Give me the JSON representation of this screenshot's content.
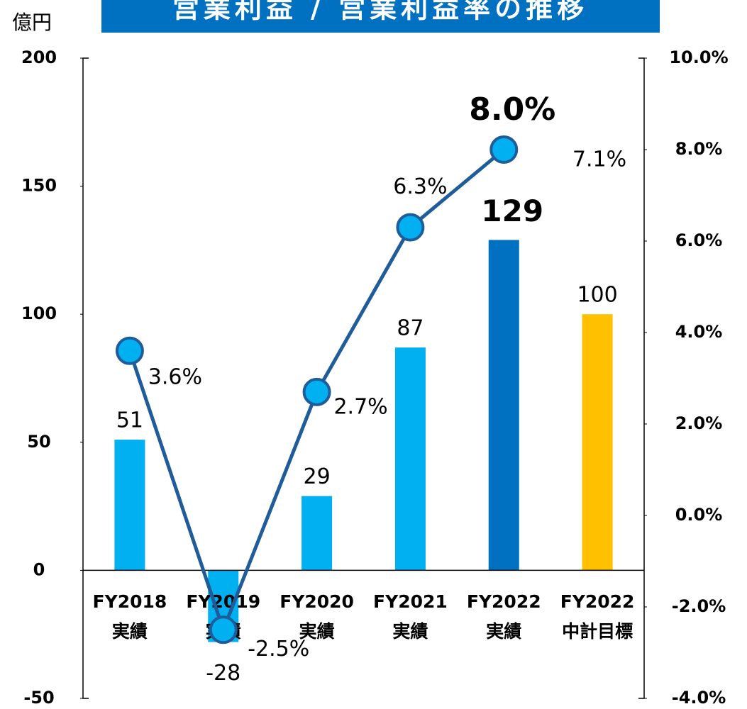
{
  "chart_data": {
    "type": "bar+line",
    "title": "営業利益 / 営業利益率の推移",
    "y_unit": "億円",
    "categories": [
      [
        "FY2018",
        "実績"
      ],
      [
        "FY2019",
        "実績"
      ],
      [
        "FY2020",
        "実績"
      ],
      [
        "FY2021",
        "実績"
      ],
      [
        "FY2022",
        "実績"
      ],
      [
        "FY2022",
        "中計目標"
      ]
    ],
    "series": [
      {
        "name": "営業利益",
        "type": "bar",
        "colors": [
          "#00b0f0",
          "#00b0f0",
          "#00b0f0",
          "#00b0f0",
          "#0070c0",
          "#ffc000"
        ],
        "values": [
          51,
          -28,
          29,
          87,
          129,
          100
        ]
      },
      {
        "name": "営業利益率",
        "type": "line",
        "axis": "y2",
        "color": "#1f5c99",
        "marker_color": "#00b0f0",
        "values": [
          3.6,
          -2.5,
          2.7,
          6.3,
          8.0,
          null
        ],
        "value_labels": [
          "3.6%",
          "-2.5%",
          "2.7%",
          "6.3%",
          "8.0%",
          null
        ]
      }
    ],
    "annotations": [
      "7.1%"
    ],
    "ylim": [
      -50,
      200
    ],
    "yticks": [
      -50,
      0,
      50,
      100,
      150,
      200
    ],
    "y2lim": [
      -4,
      10
    ],
    "y2ticks": [
      {
        "value": -4,
        "label": "-4.0%"
      },
      {
        "value": -2,
        "label": "-2.0%"
      },
      {
        "value": 0,
        "label": "0.0%"
      },
      {
        "value": 2,
        "label": "2.0%"
      },
      {
        "value": 4,
        "label": "4.0%"
      },
      {
        "value": 6,
        "label": "6.0%"
      },
      {
        "value": 8,
        "label": "8.0%"
      },
      {
        "value": 10,
        "label": "10.0%"
      }
    ],
    "grid": false
  }
}
